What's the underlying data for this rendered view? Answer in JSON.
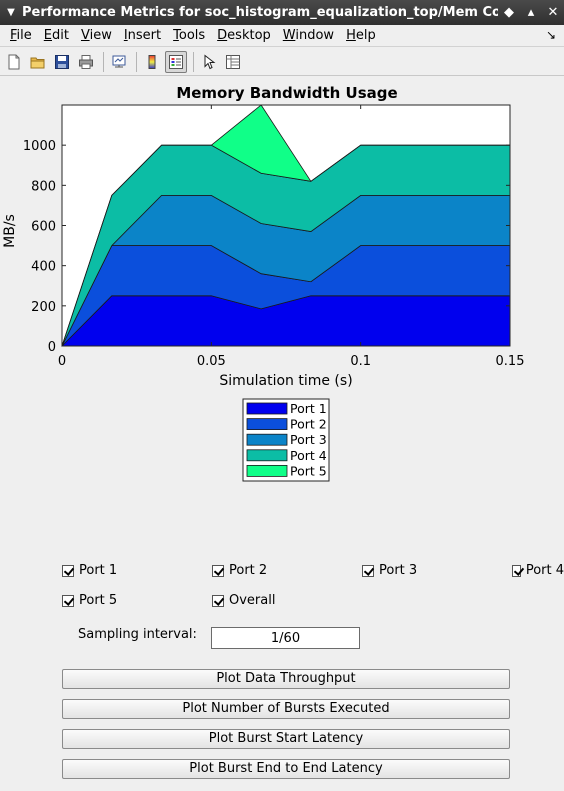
{
  "window": {
    "title": "Performance Metrics for soc_histogram_equalization_top/Mem Co",
    "controls": [
      "◆",
      "▴",
      "✕"
    ]
  },
  "menu": [
    {
      "label": "File",
      "u": "F",
      "rest": "ile"
    },
    {
      "label": "Edit",
      "u": "E",
      "rest": "dit"
    },
    {
      "label": "View",
      "u": "V",
      "rest": "iew"
    },
    {
      "label": "Insert",
      "u": "I",
      "rest": "nsert"
    },
    {
      "label": "Tools",
      "u": "T",
      "rest": "ools"
    },
    {
      "label": "Desktop",
      "u": "D",
      "rest": "esktop"
    },
    {
      "label": "Window",
      "u": "W",
      "rest": "indow"
    },
    {
      "label": "Help",
      "u": "H",
      "rest": "elp"
    }
  ],
  "toolbar_icons": [
    "new-file-icon",
    "open-folder-icon",
    "save-icon",
    "print-icon",
    "link-plot-icon",
    "colorbar-icon",
    "legend-icon",
    "pointer-icon",
    "property-inspector-icon"
  ],
  "chart_data": {
    "type": "area",
    "title": "Memory Bandwidth Usage",
    "xlabel": "Simulation time (s)",
    "ylabel": "MB/s",
    "xlim": [
      0,
      0.15
    ],
    "ylim": [
      0,
      1200
    ],
    "xticks": [
      0,
      0.05,
      0.1,
      0.15
    ],
    "xtick_labels": [
      "0",
      "0.05",
      "0.1",
      "0.15"
    ],
    "yticks": [
      0,
      200,
      400,
      600,
      800,
      1000
    ],
    "ytick_labels": [
      "0",
      "200",
      "400",
      "600",
      "800",
      "1000"
    ],
    "stacked": true,
    "x": [
      0,
      0.016667,
      0.033333,
      0.05,
      0.066667,
      0.083333,
      0.1,
      0.116667,
      0.133333,
      0.15
    ],
    "series": [
      {
        "name": "Port 1",
        "color": "#0000ee",
        "values": [
          0,
          250,
          250,
          250,
          185,
          250,
          250,
          250,
          250,
          250
        ]
      },
      {
        "name": "Port 2",
        "color": "#0b4fdc",
        "values": [
          0,
          250,
          250,
          250,
          175,
          70,
          250,
          250,
          250,
          250
        ]
      },
      {
        "name": "Port 3",
        "color": "#0b84c8",
        "values": [
          0,
          0,
          250,
          250,
          250,
          250,
          250,
          250,
          250,
          250
        ]
      },
      {
        "name": "Port 4",
        "color": "#0cbda5",
        "values": [
          0,
          250,
          250,
          250,
          250,
          250,
          250,
          250,
          250,
          250
        ]
      },
      {
        "name": "Port 5",
        "color": "#10ff88",
        "values": [
          0,
          0,
          0,
          0,
          340,
          0,
          0,
          0,
          0,
          0
        ]
      }
    ],
    "legend": [
      "Port 1",
      "Port 2",
      "Port 3",
      "Port 4",
      "Port 5"
    ],
    "legend_placement": "below"
  },
  "checkboxes": [
    {
      "label": "Port 1",
      "checked": true
    },
    {
      "label": "Port 2",
      "checked": true
    },
    {
      "label": "Port 3",
      "checked": true
    },
    {
      "label": "Port 4",
      "checked": true
    },
    {
      "label": "Port 5",
      "checked": true
    },
    {
      "label": "Overall",
      "checked": true
    }
  ],
  "sampling": {
    "label": "Sampling interval:",
    "value": "1/60"
  },
  "buttons": [
    "Plot Data Throughput",
    "Plot Number of Bursts Executed",
    "Plot Burst Start Latency",
    "Plot Burst End to End Latency"
  ]
}
